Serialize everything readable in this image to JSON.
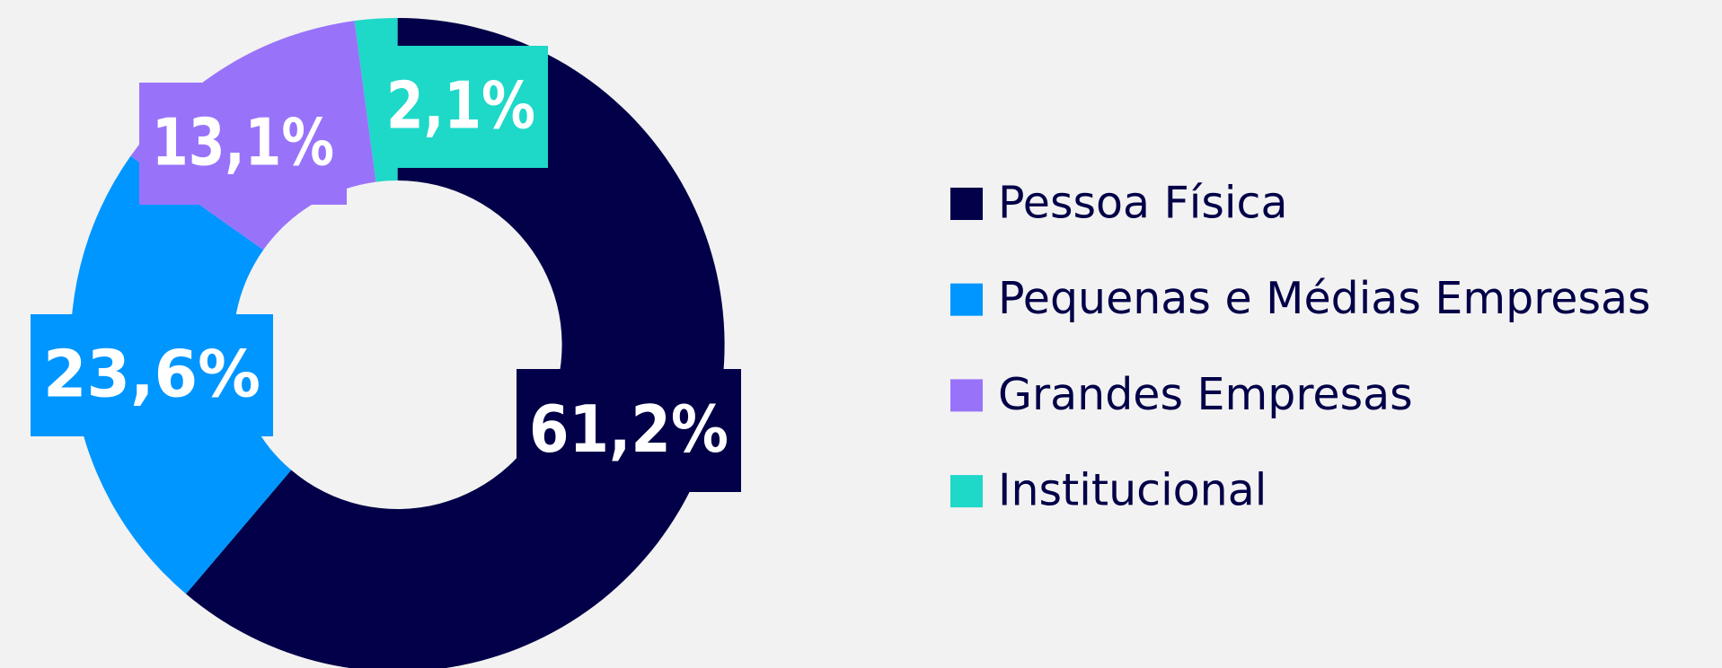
{
  "chart_data": {
    "type": "donut",
    "categories": [
      "Pessoa Física",
      "Pequenas e Médias Empresas",
      "Grandes Empresas",
      "Institucional"
    ],
    "values": [
      61.2,
      23.6,
      13.1,
      2.1
    ],
    "value_labels": [
      "61,2%",
      "23,6%",
      "13,1%",
      "2,1%"
    ],
    "colors": [
      "#020048",
      "#0096ff",
      "#9873fa",
      "#1ed8c8"
    ],
    "legend": "right"
  }
}
